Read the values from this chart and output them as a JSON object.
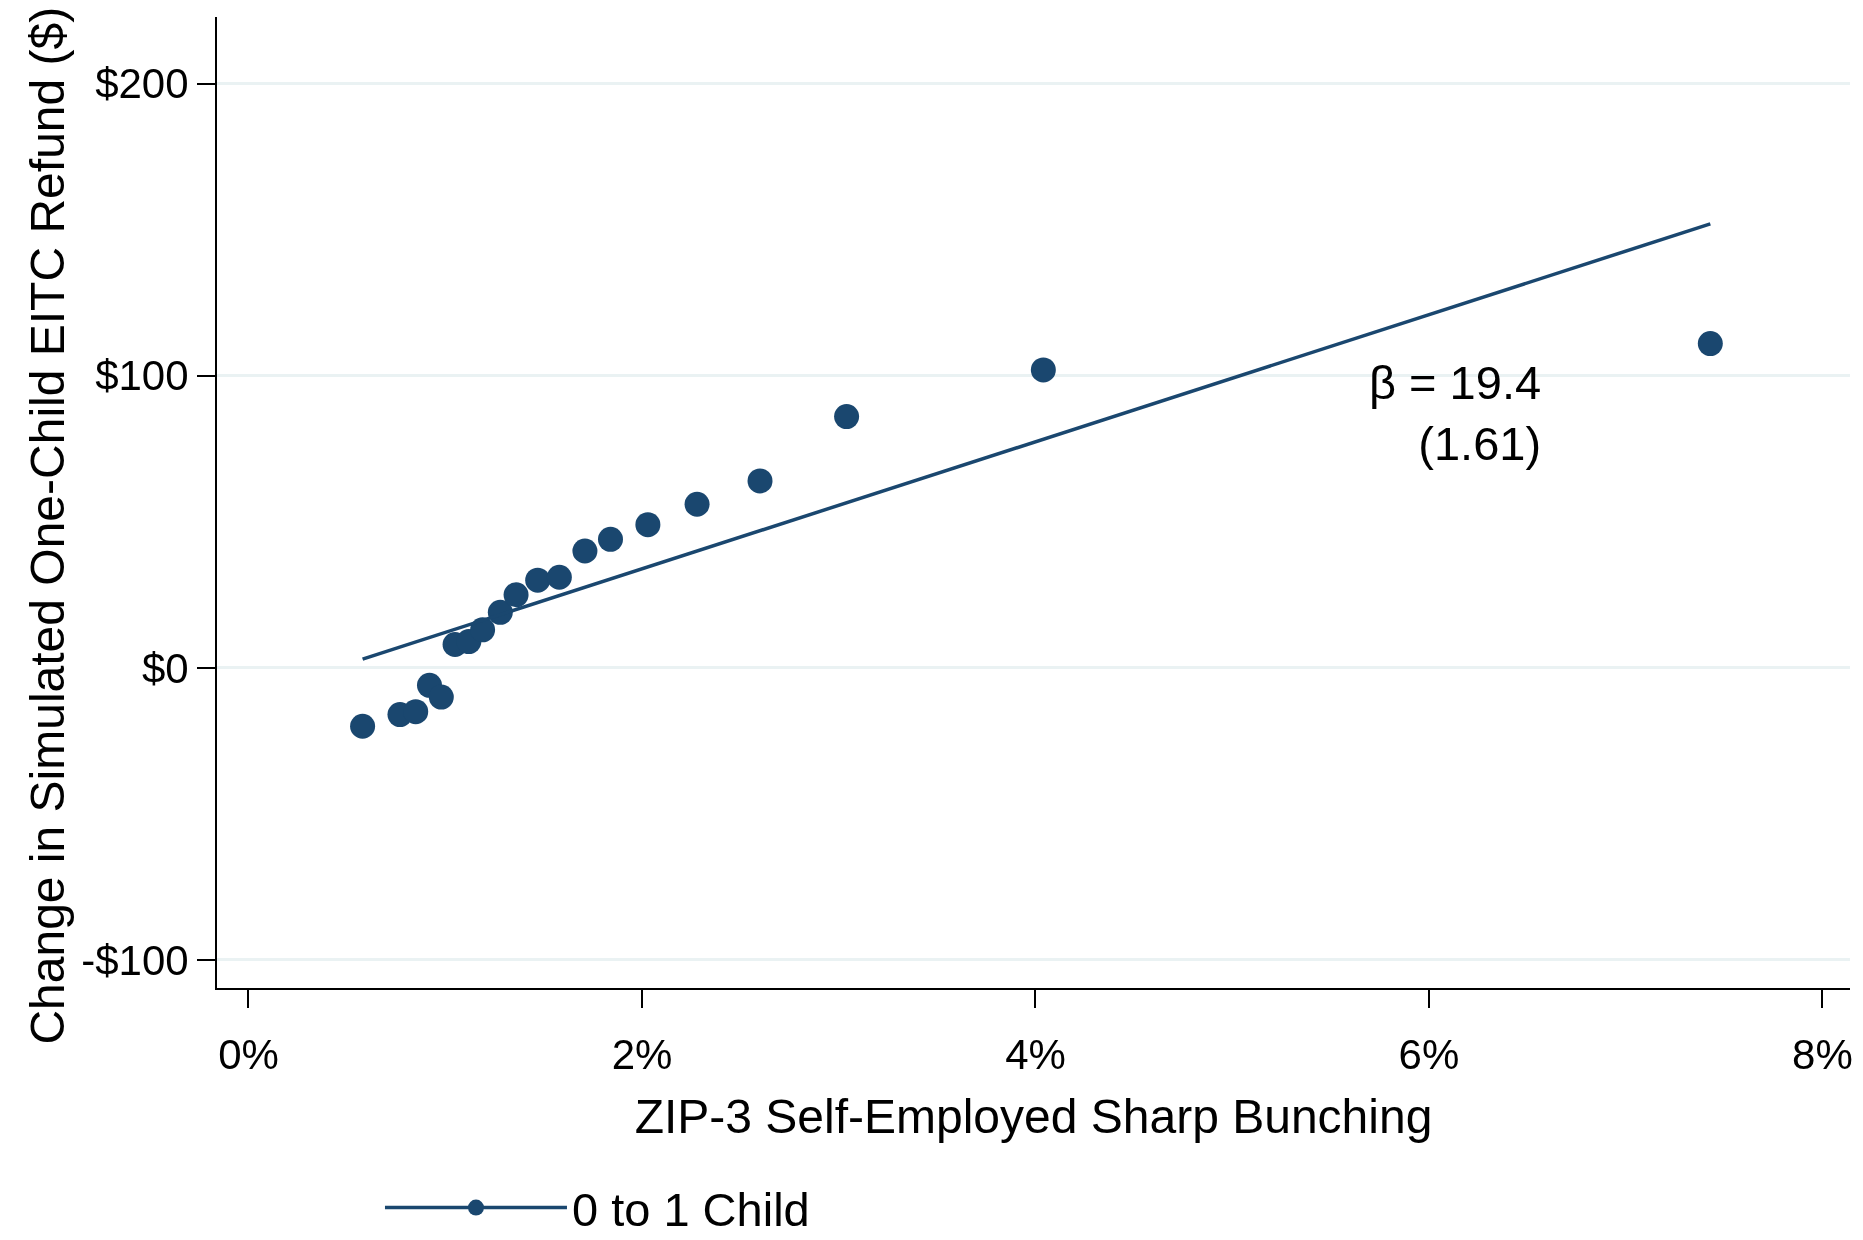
{
  "chart_data": {
    "type": "scatter",
    "xlabel": "ZIP-3 Self-Employed Sharp Bunching",
    "ylabel": "Change in Simulated One-Child EITC Refund ($)",
    "annotations": [
      "β = 19.4\n(1.61)"
    ],
    "series": [
      {
        "name": "0 to 1 Child",
        "color": "#1a476f",
        "marker": "circle",
        "x": [
          0.58,
          0.77,
          0.85,
          0.92,
          0.98,
          1.05,
          1.12,
          1.19,
          1.28,
          1.36,
          1.47,
          1.58,
          1.71,
          1.84,
          2.03,
          2.28,
          2.6,
          3.04,
          4.04,
          7.43
        ],
        "values": [
          -20,
          -16,
          -15,
          -6,
          -10,
          8,
          9,
          13,
          19,
          25,
          30,
          31,
          40,
          44,
          49,
          56,
          64,
          86,
          102,
          111
        ]
      },
      {
        "type": "line",
        "color": "#1a476f",
        "x": [
          0.58,
          7.43
        ],
        "values": [
          3,
          152
        ]
      }
    ],
    "xlim": [
      -0.16,
      8.14
    ],
    "ylim": [
      -109.6,
      222.8
    ],
    "xticks": [
      {
        "value": 0,
        "label": "0%"
      },
      {
        "value": 2,
        "label": "2%"
      },
      {
        "value": 4,
        "label": "4%"
      },
      {
        "value": 6,
        "label": "6%"
      },
      {
        "value": 8,
        "label": "8%"
      }
    ],
    "yticks": [
      {
        "value": -100,
        "label": "-$100"
      },
      {
        "value": 0,
        "label": "$0"
      },
      {
        "value": 100,
        "label": "$100"
      },
      {
        "value": 200,
        "label": "$200"
      }
    ],
    "grid": "y",
    "legend": "bottom",
    "line_style": "solid"
  }
}
